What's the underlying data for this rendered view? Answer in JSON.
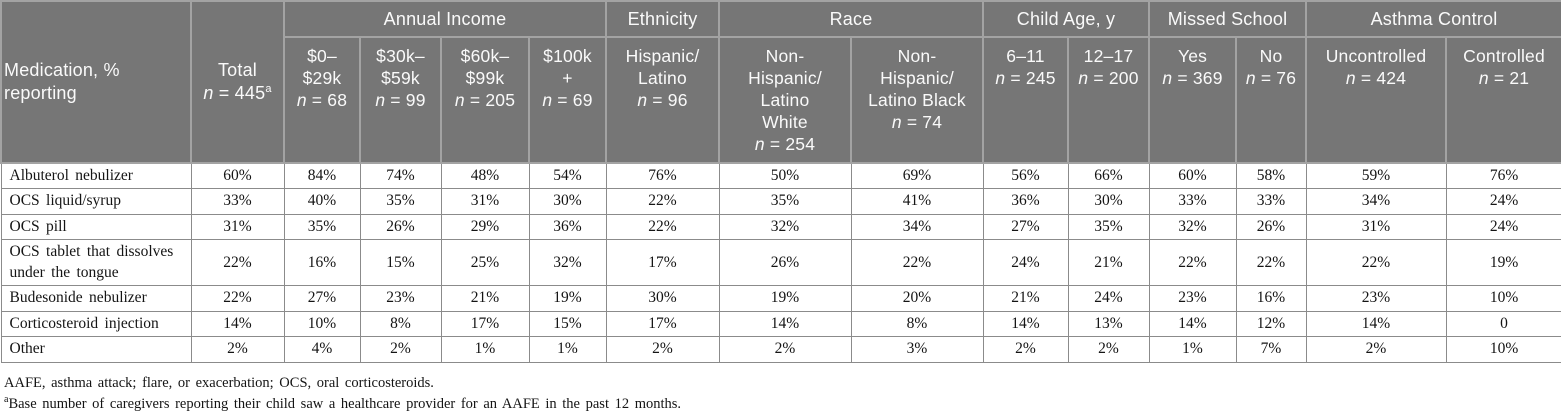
{
  "colors": {
    "header-bg": "#767676",
    "header-border": "#a3a3a3",
    "header-text": "#fafafa",
    "body-border": "#8b8b8b",
    "body-text": "#141414"
  },
  "table": {
    "corner_label": "Medication, %\nreporting",
    "total": {
      "label": "Total",
      "n": "n",
      "n_rest": " = 445",
      "sup": "a"
    },
    "groups": [
      {
        "label": "Annual Income"
      },
      {
        "label": "Ethnicity"
      },
      {
        "label": "Race"
      },
      {
        "label": "Child Age, y"
      },
      {
        "label": "Missed School"
      },
      {
        "label": "Asthma Control"
      }
    ],
    "columns": [
      {
        "label": "$0–\n$29k",
        "n": "n",
        "n_rest": " = 68"
      },
      {
        "label": "$30k–\n$59k",
        "n": "n",
        "n_rest": " = 99"
      },
      {
        "label": "$60k–\n$99k",
        "n": "n",
        "n_rest": " = 205"
      },
      {
        "label": "$100k\n+",
        "n": "n",
        "n_rest": " = 69"
      },
      {
        "label": "Hispanic/\nLatino",
        "n": "n",
        "n_rest": " = 96"
      },
      {
        "label": "Non-\nHispanic/\nLatino\nWhite",
        "n": "n",
        "n_rest": " = 254"
      },
      {
        "label": "Non-\nHispanic/\nLatino Black",
        "n": "n",
        "n_rest": " = 74"
      },
      {
        "label": "6–11",
        "n": "n",
        "n_rest": " = 245"
      },
      {
        "label": "12–17",
        "n": "n",
        "n_rest": " = 200"
      },
      {
        "label": "Yes",
        "n": "n",
        "n_rest": " = 369"
      },
      {
        "label": "No",
        "n": "n",
        "n_rest": " = 76"
      },
      {
        "label": "Uncontrolled",
        "n": "n",
        "n_rest": " = 424"
      },
      {
        "label": "Controlled",
        "n": "n",
        "n_rest": " = 21"
      }
    ],
    "rows": [
      {
        "label": "Albuterol nebulizer",
        "values": [
          "60%",
          "84%",
          "74%",
          "48%",
          "54%",
          "76%",
          "50%",
          "69%",
          "56%",
          "66%",
          "60%",
          "58%",
          "59%",
          "76%"
        ]
      },
      {
        "label": "OCS liquid/syrup",
        "values": [
          "33%",
          "40%",
          "35%",
          "31%",
          "30%",
          "22%",
          "35%",
          "41%",
          "36%",
          "30%",
          "33%",
          "33%",
          "34%",
          "24%"
        ]
      },
      {
        "label": "OCS pill",
        "values": [
          "31%",
          "35%",
          "26%",
          "29%",
          "36%",
          "22%",
          "32%",
          "34%",
          "27%",
          "35%",
          "32%",
          "26%",
          "31%",
          "24%"
        ]
      },
      {
        "label": "OCS tablet that dissolves\nunder the tongue",
        "values": [
          "22%",
          "16%",
          "15%",
          "25%",
          "32%",
          "17%",
          "26%",
          "22%",
          "24%",
          "21%",
          "22%",
          "22%",
          "22%",
          "19%"
        ]
      },
      {
        "label": "Budesonide nebulizer",
        "values": [
          "22%",
          "27%",
          "23%",
          "21%",
          "19%",
          "30%",
          "19%",
          "20%",
          "21%",
          "24%",
          "23%",
          "16%",
          "23%",
          "10%"
        ]
      },
      {
        "label": "Corticosteroid injection",
        "values": [
          "14%",
          "10%",
          "8%",
          "17%",
          "15%",
          "17%",
          "14%",
          "8%",
          "14%",
          "13%",
          "14%",
          "12%",
          "14%",
          "0"
        ]
      },
      {
        "label": "Other",
        "values": [
          "2%",
          "4%",
          "2%",
          "1%",
          "1%",
          "2%",
          "2%",
          "3%",
          "2%",
          "2%",
          "1%",
          "7%",
          "2%",
          "10%"
        ]
      }
    ]
  },
  "footnotes": {
    "abbreviations": "AAFE, asthma attack; flare, or exacerbation; OCS, oral corticosteroids.",
    "base_sup": "a",
    "base_text": "Base number of caregivers reporting their child saw a healthcare provider for an AAFE in the past 12 months."
  }
}
